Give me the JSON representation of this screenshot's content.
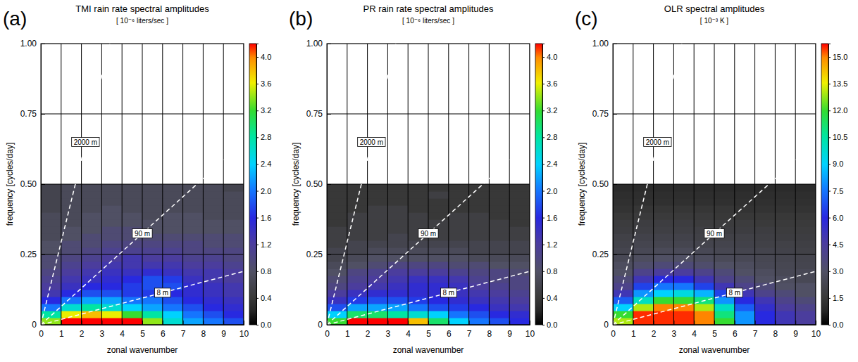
{
  "chart_data": [
    {
      "type": "heatmap",
      "panel_label": "(a)",
      "title": "TMI rain rate spectral amplitudes",
      "subtitle": "[ 10⁻⁶ liters/sec ]",
      "x_label": "zonal wavenumber",
      "y_label": "frequency [cycles/day]",
      "xlim": [
        0,
        10
      ],
      "ylim": [
        0,
        1
      ],
      "xticks": [
        0,
        1,
        2,
        3,
        4,
        5,
        6,
        7,
        8,
        9,
        10
      ],
      "yticks": [
        0,
        0.25,
        {
          "value": 0.5,
          "label": "0.50"
        },
        0.75,
        {
          "value": 1,
          "label": "1.00"
        }
      ],
      "grid": true,
      "x": [
        0.5,
        1.5,
        2.5,
        3.5,
        4.5,
        5.5,
        6.5,
        7.5,
        8.5,
        9.5
      ],
      "y": [
        0.0125,
        0.0375,
        0.0625,
        0.0875,
        0.1125,
        0.1375,
        0.1625,
        0.1875,
        0.2125,
        0.2375,
        0.2625,
        0.2875,
        0.3125,
        0.3375,
        0.3625,
        0.3875,
        0.4125,
        0.4375,
        0.4625,
        0.4875
      ],
      "z": [
        [
          3.4,
          4.2,
          4.4,
          4.4,
          4.2,
          3.4,
          2.6,
          2.2,
          2.0,
          1.8
        ],
        [
          2.8,
          3.6,
          3.8,
          3.6,
          3.2,
          2.8,
          2.4,
          2.0,
          1.8,
          1.6
        ],
        [
          2.0,
          2.6,
          2.8,
          2.6,
          2.4,
          2.2,
          2.0,
          1.8,
          1.6,
          1.5
        ],
        [
          1.6,
          2.0,
          2.2,
          2.2,
          2.0,
          2.0,
          1.8,
          1.6,
          1.5,
          1.4
        ],
        [
          1.3,
          1.6,
          1.8,
          1.8,
          1.7,
          1.7,
          1.6,
          1.5,
          1.4,
          1.3
        ],
        [
          1.2,
          1.4,
          1.6,
          1.6,
          1.7,
          1.8,
          1.8,
          1.5,
          1.4,
          1.3
        ],
        [
          1.1,
          1.3,
          1.4,
          1.5,
          1.6,
          1.8,
          1.7,
          1.4,
          1.3,
          1.2
        ],
        [
          1.0,
          1.2,
          1.3,
          1.4,
          1.4,
          1.5,
          1.4,
          1.3,
          1.3,
          1.2
        ],
        [
          0.9,
          1.1,
          1.2,
          1.3,
          1.3,
          1.3,
          1.3,
          1.2,
          1.2,
          1.1
        ],
        [
          0.9,
          1.0,
          1.1,
          1.2,
          1.3,
          1.2,
          1.2,
          1.1,
          1.1,
          1.0
        ],
        [
          0.8,
          0.9,
          1.0,
          1.1,
          1.1,
          1.1,
          1.1,
          1.0,
          1.0,
          1.0
        ],
        [
          0.8,
          0.9,
          0.9,
          1.0,
          1.0,
          1.0,
          1.0,
          1.0,
          0.9,
          0.9
        ],
        [
          0.7,
          0.8,
          0.9,
          0.9,
          0.9,
          0.9,
          0.9,
          0.9,
          0.9,
          0.9
        ],
        [
          0.7,
          0.8,
          0.8,
          0.9,
          0.9,
          0.8,
          0.8,
          0.8,
          0.8,
          0.8
        ],
        [
          0.7,
          0.7,
          0.8,
          0.8,
          0.8,
          0.8,
          0.8,
          0.8,
          0.8,
          0.8
        ],
        [
          0.7,
          0.7,
          0.8,
          0.8,
          0.8,
          0.7,
          0.8,
          0.8,
          0.7,
          0.7
        ],
        [
          0.6,
          0.7,
          0.7,
          0.8,
          0.7,
          0.7,
          0.7,
          0.7,
          0.7,
          0.7
        ],
        [
          0.6,
          0.7,
          0.7,
          0.7,
          0.7,
          0.7,
          0.7,
          0.7,
          0.7,
          0.7
        ],
        [
          0.6,
          0.7,
          0.7,
          0.7,
          0.7,
          0.7,
          0.7,
          0.7,
          0.7,
          0.7
        ],
        [
          0.6,
          0.7,
          0.7,
          0.7,
          0.7,
          0.7,
          0.7,
          0.7,
          0.7,
          0.6
        ]
      ],
      "colorbar": {
        "range": [
          0,
          4.2
        ],
        "ticks": [
          {
            "value": 0,
            "label": "0.0"
          },
          0.4,
          0.8,
          1.2,
          1.6,
          {
            "value": 2,
            "label": "2.0"
          },
          2.4,
          2.8,
          3.2,
          3.6,
          {
            "value": 4,
            "label": "4.0"
          }
        ]
      },
      "lines": [
        {
          "label": "2000 m",
          "x": [
            0,
            3.4
          ],
          "y": [
            0,
            1.0
          ],
          "label_at": [
            2.2,
            0.65
          ]
        },
        {
          "label": "90 m",
          "x": [
            0,
            10
          ],
          "y": [
            0,
            0.65
          ],
          "label_at": [
            5.0,
            0.325
          ]
        },
        {
          "label": "8 m",
          "x": [
            0,
            10
          ],
          "y": [
            0,
            0.19
          ],
          "label_at": [
            6.0,
            0.114
          ]
        }
      ]
    },
    {
      "type": "heatmap",
      "panel_label": "(b)",
      "title": "PR rain rate spectral amplitudes",
      "subtitle": "[ 10⁻⁶ liters/sec ]",
      "x_label": "zonal wavenumber",
      "y_label": "frequency [cycles/day]",
      "xlim": [
        0,
        10
      ],
      "ylim": [
        0,
        1
      ],
      "xticks": [
        0,
        1,
        2,
        3,
        4,
        5,
        6,
        7,
        8,
        9,
        10
      ],
      "yticks": [
        0,
        0.25,
        {
          "value": 0.5,
          "label": "0.50"
        },
        0.75,
        {
          "value": 1,
          "label": "1.00"
        }
      ],
      "grid": true,
      "x": [
        0.5,
        1.5,
        2.5,
        3.5,
        4.5,
        5.5,
        6.5,
        7.5,
        8.5,
        9.5
      ],
      "y": [
        0.0125,
        0.0375,
        0.0625,
        0.0875,
        0.1125,
        0.1375,
        0.1625,
        0.1875,
        0.2125,
        0.2375,
        0.2625,
        0.2875,
        0.3125,
        0.3375,
        0.3625,
        0.3875,
        0.4125,
        0.4375,
        0.4625,
        0.4875
      ],
      "z": [
        [
          3.2,
          4.2,
          4.4,
          4.2,
          3.8,
          3.0,
          2.4,
          2.0,
          1.8,
          1.6
        ],
        [
          2.4,
          3.0,
          3.0,
          2.8,
          2.6,
          2.4,
          2.0,
          1.8,
          1.6,
          1.5
        ],
        [
          1.8,
          2.2,
          2.2,
          2.2,
          2.0,
          1.8,
          1.7,
          1.6,
          1.4,
          1.3
        ],
        [
          1.4,
          1.7,
          1.8,
          1.8,
          1.7,
          1.6,
          1.5,
          1.4,
          1.3,
          1.2
        ],
        [
          1.2,
          1.4,
          1.5,
          1.5,
          1.5,
          1.5,
          1.4,
          1.3,
          1.2,
          1.1
        ],
        [
          1.0,
          1.2,
          1.3,
          1.4,
          1.5,
          1.5,
          1.4,
          1.2,
          1.1,
          1.0
        ],
        [
          0.9,
          1.1,
          1.2,
          1.3,
          1.4,
          1.4,
          1.3,
          1.1,
          1.0,
          1.0
        ],
        [
          0.8,
          1.0,
          1.1,
          1.2,
          1.2,
          1.2,
          1.1,
          1.0,
          1.0,
          0.9
        ],
        [
          0.7,
          0.8,
          0.9,
          1.0,
          1.0,
          1.0,
          0.9,
          0.9,
          0.8,
          0.8
        ],
        [
          0.6,
          0.7,
          0.8,
          0.8,
          0.8,
          0.8,
          0.8,
          0.7,
          0.7,
          0.7
        ],
        [
          0.6,
          0.6,
          0.7,
          0.7,
          0.7,
          0.7,
          0.7,
          0.6,
          0.6,
          0.6
        ],
        [
          0.5,
          0.6,
          0.6,
          0.6,
          0.6,
          0.6,
          0.6,
          0.6,
          0.6,
          0.6
        ],
        [
          0.5,
          0.5,
          0.5,
          0.6,
          0.5,
          0.5,
          0.5,
          0.5,
          0.5,
          0.5
        ],
        [
          0.5,
          0.5,
          0.5,
          0.5,
          0.5,
          0.5,
          0.5,
          0.5,
          0.5,
          0.5
        ],
        [
          0.4,
          0.5,
          0.5,
          0.5,
          0.5,
          0.5,
          0.5,
          0.5,
          0.5,
          0.4
        ],
        [
          0.4,
          0.5,
          0.5,
          0.5,
          0.5,
          0.4,
          0.5,
          0.5,
          0.4,
          0.4
        ],
        [
          0.4,
          0.4,
          0.5,
          0.5,
          0.4,
          0.4,
          0.4,
          0.4,
          0.4,
          0.4
        ],
        [
          0.4,
          0.4,
          0.4,
          0.4,
          0.4,
          0.4,
          0.4,
          0.4,
          0.4,
          0.4
        ],
        [
          0.4,
          0.4,
          0.4,
          0.4,
          0.4,
          0.5,
          0.4,
          0.4,
          0.4,
          0.4
        ],
        [
          0.4,
          0.4,
          0.4,
          0.4,
          0.4,
          0.4,
          0.4,
          0.4,
          0.4,
          0.4
        ]
      ],
      "colorbar": {
        "range": [
          0,
          4.2
        ],
        "ticks": [
          {
            "value": 0,
            "label": "0.0"
          },
          0.4,
          0.8,
          1.2,
          1.6,
          {
            "value": 2,
            "label": "2.0"
          },
          2.4,
          2.8,
          3.2,
          3.6,
          {
            "value": 4,
            "label": "4.0"
          }
        ]
      },
      "lines": [
        {
          "label": "2000 m",
          "x": [
            0,
            3.4
          ],
          "y": [
            0,
            1.0
          ],
          "label_at": [
            2.2,
            0.65
          ]
        },
        {
          "label": "90 m",
          "x": [
            0,
            10
          ],
          "y": [
            0,
            0.65
          ],
          "label_at": [
            5.0,
            0.325
          ]
        },
        {
          "label": "8 m",
          "x": [
            0,
            10
          ],
          "y": [
            0,
            0.19
          ],
          "label_at": [
            6.0,
            0.114
          ]
        }
      ]
    },
    {
      "type": "heatmap",
      "panel_label": "(c)",
      "title": "OLR spectral amplitudes",
      "subtitle": "[ 10⁻³ K ]",
      "x_label": "zonal wavenumber",
      "y_label": "frequency [cycles/day]",
      "xlim": [
        0,
        10
      ],
      "ylim": [
        0,
        1
      ],
      "xticks": [
        0,
        1,
        2,
        3,
        4,
        5,
        6,
        7,
        8,
        9,
        10
      ],
      "yticks": [
        0,
        0.25,
        {
          "value": 0.5,
          "label": "0.50"
        },
        0.75,
        {
          "value": 1,
          "label": "1.00"
        }
      ],
      "grid": true,
      "x": [
        0.5,
        1.5,
        2.5,
        3.5,
        4.5,
        5.5,
        6.5,
        7.5,
        8.5,
        9.5
      ],
      "y": [
        0.0125,
        0.0375,
        0.0625,
        0.0875,
        0.1125,
        0.1375,
        0.1625,
        0.1875,
        0.2125,
        0.2375,
        0.2625,
        0.2875,
        0.3125,
        0.3375,
        0.3625,
        0.3875,
        0.4125,
        0.4375,
        0.4625,
        0.4875
      ],
      "z": [
        [
          13,
          15.5,
          15.5,
          15.5,
          15,
          12,
          8,
          6,
          5,
          4.5
        ],
        [
          12,
          15.5,
          15.5,
          15.5,
          15,
          11,
          8,
          6,
          5,
          4.5
        ],
        [
          9,
          13,
          15,
          15,
          13,
          10,
          7,
          5.5,
          4.5,
          4
        ],
        [
          7,
          10,
          12,
          12,
          11,
          8,
          6,
          5,
          4,
          3.5
        ],
        [
          5,
          8,
          9,
          9.5,
          8.5,
          6.5,
          5,
          4,
          3.5,
          3
        ],
        [
          4,
          6.5,
          7.5,
          7.5,
          6.5,
          5,
          4,
          3.5,
          3,
          3
        ],
        [
          3.5,
          5,
          6,
          6,
          5,
          4,
          3.5,
          3,
          2.8,
          2.5
        ],
        [
          3,
          4,
          4.5,
          4.5,
          4,
          3.5,
          3,
          2.8,
          2.5,
          2.5
        ],
        [
          2.8,
          3.2,
          3.5,
          3.5,
          3.2,
          3,
          2.8,
          2.5,
          2.4,
          2.3
        ],
        [
          2.5,
          2.8,
          3,
          3,
          2.8,
          2.6,
          2.5,
          2.4,
          2.3,
          2.2
        ],
        [
          2.3,
          2.5,
          2.6,
          2.6,
          2.5,
          2.4,
          2.3,
          2.2,
          2.1,
          2.0
        ],
        [
          2.1,
          2.3,
          2.3,
          2.3,
          2.2,
          2.2,
          2.1,
          2.0,
          2.0,
          1.9
        ],
        [
          2.0,
          2.1,
          2.1,
          2.1,
          2.0,
          2.0,
          2.0,
          1.9,
          1.8,
          1.8
        ],
        [
          1.8,
          1.9,
          1.9,
          1.9,
          1.9,
          1.8,
          1.8,
          1.8,
          1.7,
          1.7
        ],
        [
          1.7,
          1.8,
          1.8,
          1.8,
          1.7,
          1.7,
          1.7,
          1.6,
          1.6,
          1.6
        ],
        [
          1.5,
          1.6,
          1.6,
          1.6,
          1.6,
          1.5,
          1.5,
          1.5,
          1.5,
          1.5
        ],
        [
          1.3,
          1.4,
          1.4,
          1.4,
          1.4,
          1.4,
          1.3,
          1.3,
          1.3,
          1.3
        ],
        [
          1.2,
          1.2,
          1.2,
          1.2,
          1.2,
          1.2,
          1.2,
          1.2,
          1.2,
          1.2
        ],
        [
          1.1,
          1.1,
          1.1,
          1.1,
          1.1,
          1.1,
          1.1,
          1.1,
          1.1,
          1.1
        ],
        [
          1.0,
          1.0,
          1.0,
          1.0,
          1.0,
          1.0,
          1.0,
          1.0,
          1.0,
          1.0
        ]
      ],
      "colorbar": {
        "range": [
          0,
          15.75
        ],
        "ticks": [
          {
            "value": 0,
            "label": "0.0"
          },
          1.5,
          {
            "value": 3,
            "label": "3.0"
          },
          4.5,
          {
            "value": 6,
            "label": "6.0"
          },
          7.5,
          {
            "value": 9,
            "label": "9.0"
          },
          10.5,
          {
            "value": 12,
            "label": "12.0"
          },
          13.5,
          {
            "value": 15,
            "label": "15.0"
          }
        ]
      },
      "lines": [
        {
          "label": "2000 m",
          "x": [
            0,
            3.4
          ],
          "y": [
            0,
            1.0
          ],
          "label_at": [
            2.2,
            0.65
          ]
        },
        {
          "label": "90 m",
          "x": [
            0,
            10
          ],
          "y": [
            0,
            0.65
          ],
          "label_at": [
            5.0,
            0.325
          ]
        },
        {
          "label": "8 m",
          "x": [
            0,
            10
          ],
          "y": [
            0,
            0.19
          ],
          "label_at": [
            6.0,
            0.114
          ]
        }
      ]
    }
  ]
}
